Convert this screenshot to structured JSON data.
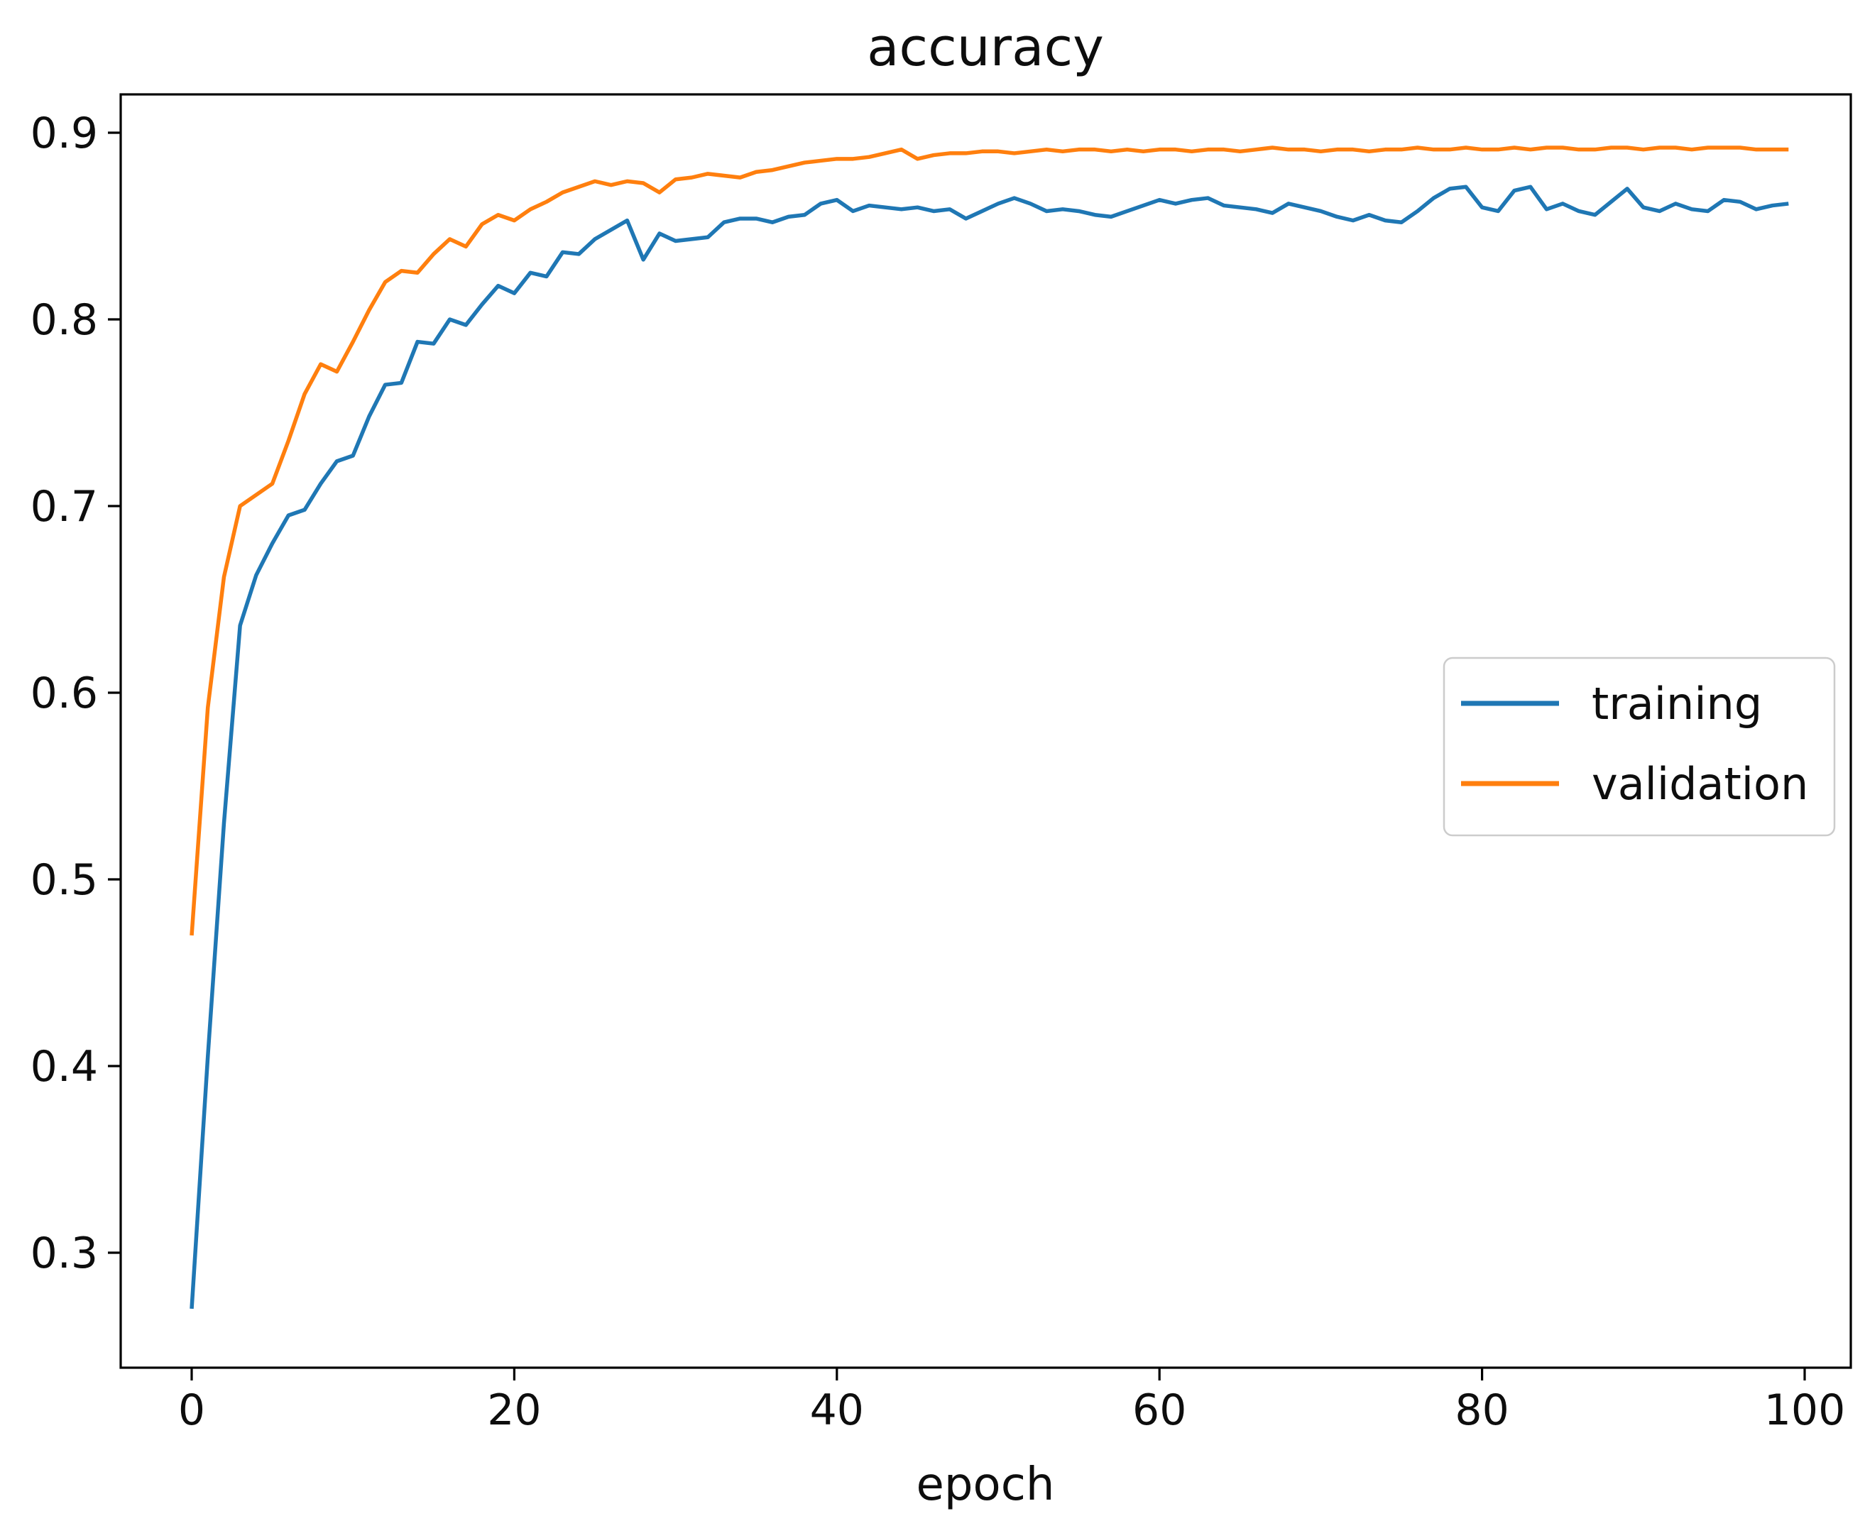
{
  "chart_data": {
    "type": "line",
    "title": "accuracy",
    "xlabel": "epoch",
    "ylabel": "",
    "grid": false,
    "legend": {
      "position": "center right",
      "entries": [
        "training",
        "validation"
      ]
    },
    "axes": {
      "xticks": [
        0,
        20,
        40,
        60,
        80,
        100
      ],
      "yticks": [
        0.3,
        0.4,
        0.5,
        0.6,
        0.7,
        0.8,
        0.9
      ],
      "xlim": [
        -4.6,
        102.8
      ],
      "ylim": [
        0.238,
        0.921
      ]
    },
    "x": [
      0,
      1,
      2,
      3,
      4,
      5,
      6,
      7,
      8,
      9,
      10,
      11,
      12,
      13,
      14,
      15,
      16,
      17,
      18,
      19,
      20,
      21,
      22,
      23,
      24,
      25,
      26,
      27,
      28,
      29,
      30,
      31,
      32,
      33,
      34,
      35,
      36,
      37,
      38,
      39,
      40,
      41,
      42,
      43,
      44,
      45,
      46,
      47,
      48,
      49,
      50,
      51,
      52,
      53,
      54,
      55,
      56,
      57,
      58,
      59,
      60,
      61,
      62,
      63,
      64,
      65,
      66,
      67,
      68,
      69,
      70,
      71,
      72,
      73,
      74,
      75,
      76,
      77,
      78,
      79,
      80,
      81,
      82,
      83,
      84,
      85,
      86,
      87,
      88,
      89,
      90,
      91,
      92,
      93,
      94,
      95,
      96,
      97,
      98,
      99
    ],
    "series": [
      {
        "name": "training",
        "color": "#1f77b4",
        "values": [
          0.27,
          0.405,
          0.53,
          0.636,
          0.663,
          0.68,
          0.695,
          0.698,
          0.712,
          0.724,
          0.727,
          0.748,
          0.765,
          0.766,
          0.788,
          0.787,
          0.8,
          0.797,
          0.808,
          0.818,
          0.814,
          0.825,
          0.823,
          0.836,
          0.835,
          0.843,
          0.848,
          0.853,
          0.832,
          0.846,
          0.842,
          0.843,
          0.844,
          0.852,
          0.854,
          0.854,
          0.852,
          0.855,
          0.856,
          0.862,
          0.864,
          0.858,
          0.861,
          0.86,
          0.859,
          0.86,
          0.858,
          0.859,
          0.854,
          0.858,
          0.862,
          0.865,
          0.862,
          0.858,
          0.859,
          0.858,
          0.856,
          0.855,
          0.858,
          0.861,
          0.864,
          0.862,
          0.864,
          0.865,
          0.861,
          0.86,
          0.859,
          0.857,
          0.862,
          0.86,
          0.858,
          0.855,
          0.853,
          0.856,
          0.853,
          0.852,
          0.858,
          0.865,
          0.87,
          0.871,
          0.86,
          0.858,
          0.869,
          0.871,
          0.859,
          0.862,
          0.858,
          0.856,
          0.863,
          0.87,
          0.86,
          0.858,
          0.862,
          0.859,
          0.858,
          0.864,
          0.863,
          0.859,
          0.861,
          0.862
        ]
      },
      {
        "name": "validation",
        "color": "#ff7f0e",
        "values": [
          0.47,
          0.592,
          0.662,
          0.7,
          0.706,
          0.712,
          0.735,
          0.76,
          0.776,
          0.772,
          0.788,
          0.805,
          0.82,
          0.826,
          0.825,
          0.835,
          0.843,
          0.839,
          0.851,
          0.856,
          0.853,
          0.859,
          0.863,
          0.868,
          0.871,
          0.874,
          0.872,
          0.874,
          0.873,
          0.868,
          0.875,
          0.876,
          0.878,
          0.877,
          0.876,
          0.879,
          0.88,
          0.882,
          0.884,
          0.885,
          0.886,
          0.886,
          0.887,
          0.889,
          0.891,
          0.886,
          0.888,
          0.889,
          0.889,
          0.89,
          0.89,
          0.889,
          0.89,
          0.891,
          0.89,
          0.891,
          0.891,
          0.89,
          0.891,
          0.89,
          0.891,
          0.891,
          0.89,
          0.891,
          0.891,
          0.89,
          0.891,
          0.892,
          0.891,
          0.891,
          0.89,
          0.891,
          0.891,
          0.89,
          0.891,
          0.891,
          0.892,
          0.891,
          0.891,
          0.892,
          0.891,
          0.891,
          0.892,
          0.891,
          0.892,
          0.892,
          0.891,
          0.891,
          0.892,
          0.892,
          0.891,
          0.892,
          0.892,
          0.891,
          0.892,
          0.892,
          0.892,
          0.891,
          0.891,
          0.891
        ]
      }
    ]
  }
}
